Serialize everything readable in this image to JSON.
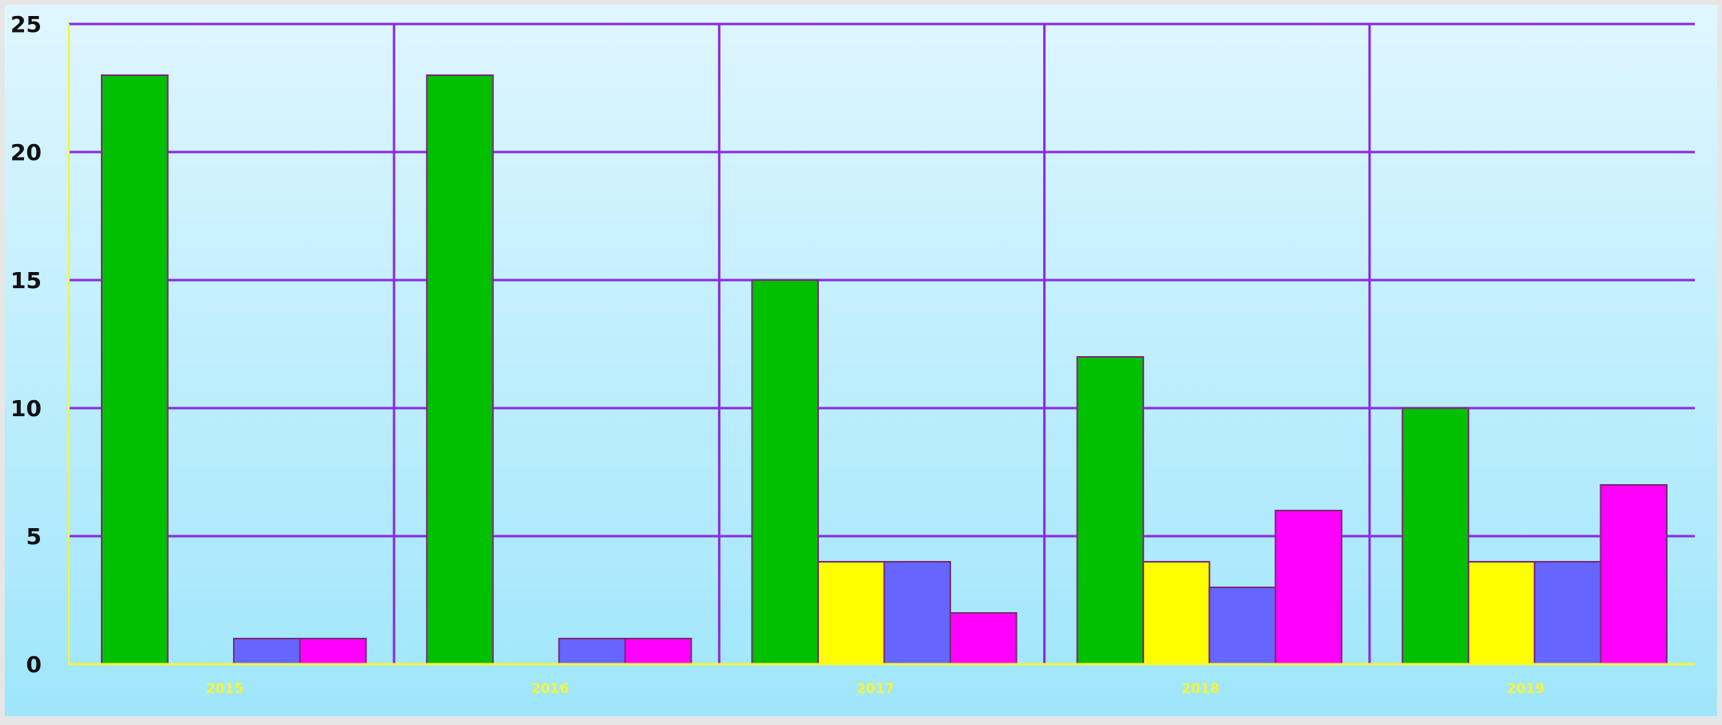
{
  "chart_data": {
    "type": "bar",
    "title": "",
    "xlabel": "",
    "ylabel": "",
    "categories": [
      "2015",
      "2016",
      "2017",
      "2018",
      "2019"
    ],
    "series": [
      {
        "color": "#00c000",
        "values": [
          23,
          23,
          15,
          12,
          10
        ]
      },
      {
        "color": "#ffff00",
        "values": [
          0,
          0,
          4,
          4,
          4
        ]
      },
      {
        "color": "#6666ff",
        "values": [
          1,
          1,
          4,
          3,
          4
        ]
      },
      {
        "color": "#ff00ff",
        "values": [
          1,
          1,
          2,
          6,
          7
        ]
      }
    ],
    "ylim": [
      0,
      25
    ],
    "yticks": [
      0,
      5,
      10,
      15,
      20,
      25
    ],
    "grid": true,
    "legend": "none",
    "colors": {
      "background_top": "#dff6ff",
      "background_bottom": "#9fe6fb",
      "grid": "#8a2be2",
      "xaxis": "#f3f53a",
      "xtick_text": "#f3f53a",
      "ytick_text": "#111111"
    }
  }
}
